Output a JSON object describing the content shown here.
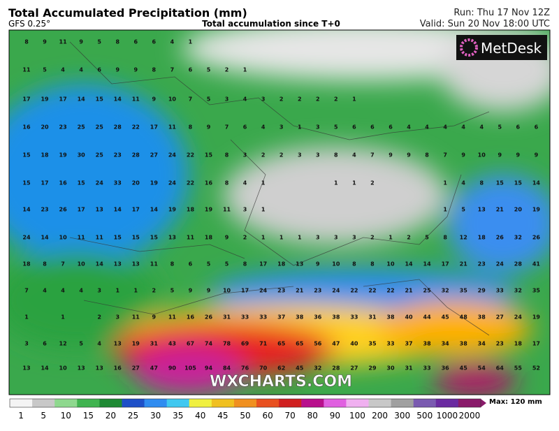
{
  "header": {
    "title": "Total Accumulated Precipitation (mm)",
    "model": "GFS 0.25°",
    "subtitle": "Total accumulation since T+0",
    "run": "Run: Thu 17 Nov 12Z",
    "valid": "Valid: Sun 20 Nov 18:00 UTC",
    "logo": "MetDesk"
  },
  "watermark": "WXCHARTS.COM",
  "grid_values": [
    [
      8,
      9,
      11,
      9,
      5,
      8,
      6,
      6,
      4,
      1
    ],
    [
      11,
      5,
      4,
      4,
      6,
      9,
      9,
      8,
      7,
      6,
      5,
      2,
      1
    ],
    [
      17,
      19,
      17,
      14,
      15,
      14,
      11,
      9,
      10,
      7,
      5,
      3,
      4,
      3,
      2,
      2,
      2,
      2,
      1
    ],
    [
      16,
      20,
      23,
      25,
      25,
      28,
      22,
      17,
      11,
      8,
      9,
      7,
      6,
      4,
      3,
      1,
      3,
      5,
      6,
      6,
      6,
      4,
      4,
      4,
      4,
      4,
      5,
      6,
      6
    ],
    [
      15,
      18,
      19,
      30,
      25,
      23,
      28,
      27,
      24,
      22,
      15,
      8,
      3,
      2,
      2,
      3,
      3,
      8,
      4,
      7,
      9,
      9,
      8,
      7,
      9,
      10,
      9,
      9,
      9
    ],
    [
      15,
      17,
      16,
      15,
      24,
      33,
      20,
      19,
      24,
      22,
      16,
      8,
      4,
      1,
      null,
      null,
      null,
      1,
      1,
      2,
      null,
      null,
      null,
      1,
      4,
      8,
      15,
      15,
      14
    ],
    [
      14,
      23,
      26,
      17,
      13,
      14,
      17,
      14,
      19,
      18,
      19,
      11,
      3,
      1,
      null,
      null,
      null,
      null,
      null,
      null,
      null,
      null,
      null,
      1,
      5,
      13,
      21,
      20,
      19
    ],
    [
      24,
      14,
      10,
      11,
      11,
      15,
      15,
      15,
      13,
      11,
      18,
      9,
      2,
      1,
      1,
      1,
      3,
      3,
      3,
      2,
      1,
      2,
      5,
      8,
      12,
      18,
      26,
      32,
      26
    ],
    [
      18,
      8,
      7,
      10,
      14,
      13,
      13,
      11,
      8,
      6,
      5,
      5,
      8,
      17,
      18,
      13,
      9,
      10,
      8,
      8,
      10,
      14,
      14,
      17,
      21,
      23,
      24,
      28,
      41
    ],
    [
      7,
      4,
      4,
      4,
      3,
      1,
      1,
      2,
      5,
      9,
      9,
      10,
      17,
      24,
      23,
      21,
      23,
      24,
      22,
      22,
      22,
      21,
      25,
      32,
      35,
      29,
      33,
      32,
      35
    ],
    [
      1,
      null,
      1,
      null,
      2,
      3,
      11,
      9,
      11,
      16,
      26,
      31,
      33,
      33,
      37,
      38,
      36,
      38,
      33,
      31,
      38,
      40,
      44,
      45,
      48,
      38,
      27,
      24,
      19
    ],
    [
      3,
      6,
      12,
      5,
      4,
      13,
      19,
      31,
      43,
      67,
      74,
      78,
      69,
      71,
      65,
      65,
      56,
      47,
      40,
      35,
      33,
      37,
      38,
      34,
      38,
      34,
      23,
      18,
      17
    ],
    [
      13,
      14,
      10,
      13,
      13,
      16,
      27,
      47,
      90,
      105,
      94,
      84,
      76,
      70,
      62,
      45,
      32,
      28,
      27,
      29,
      30,
      31,
      33,
      36,
      45,
      54,
      64,
      55,
      52
    ]
  ],
  "colorbar": {
    "labels": [
      1,
      5,
      10,
      15,
      20,
      25,
      30,
      35,
      40,
      45,
      50,
      60,
      70,
      80,
      90,
      100,
      200,
      300,
      500,
      1000,
      2000
    ],
    "max": "Max: 120 mm"
  }
}
